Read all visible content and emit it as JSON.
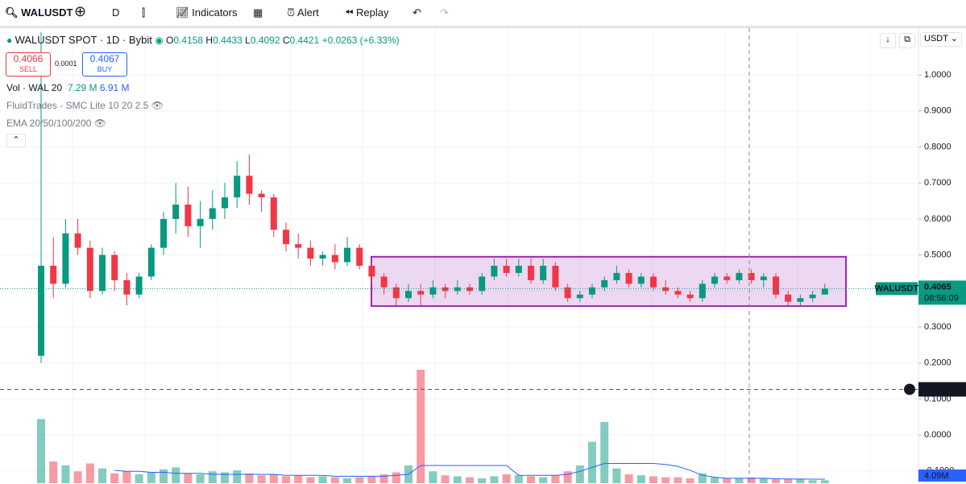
{
  "toolbar": {
    "symbol": "WALUSDT",
    "interval": "D",
    "indicators": "Indicators",
    "alert": "Alert",
    "replay": "Replay"
  },
  "legend": {
    "title": "WALUSDT SPOT · 1D · Bybit",
    "o_label": "O",
    "o": 0.4158,
    "h_label": "H",
    "h": 0.4433,
    "l_label": "L",
    "l": 0.4092,
    "c_label": "C",
    "c": 0.4421,
    "change": "+0.0263 (+6.33%)",
    "sell_price": 0.4066,
    "sell": "SELL",
    "spread": 0.0001,
    "buy_price": 0.4067,
    "buy": "BUY",
    "vol_title": "Vol · WAL 20",
    "vol_value": "7.29 M",
    "vol_ma": "6.91 M",
    "indicator_1": "FluidTrades - SMC Lite 10 20 2.5",
    "indicator_2": "EMA 20/50/100/200"
  },
  "currency": "USDT",
  "chart_data": {
    "type": "candlestick",
    "open": [
      0.22,
      0.47,
      0.42,
      0.56,
      0.52,
      0.4,
      0.5,
      0.43,
      0.39,
      0.44,
      0.52,
      0.6,
      0.64,
      0.58,
      0.6,
      0.63,
      0.66,
      0.72,
      0.67,
      0.66,
      0.57,
      0.53,
      0.52,
      0.49,
      0.5,
      0.48,
      0.52,
      0.47,
      0.44,
      0.41,
      0.38,
      0.4,
      0.39,
      0.41,
      0.4,
      0.41,
      0.4,
      0.44,
      0.47,
      0.45,
      0.47,
      0.43,
      0.47,
      0.41,
      0.38,
      0.39,
      0.41,
      0.43,
      0.45,
      0.42,
      0.44,
      0.41,
      0.4,
      0.39,
      0.38,
      0.42,
      0.44,
      0.43,
      0.45,
      0.43,
      0.44,
      0.39,
      0.37,
      0.38,
      0.39
    ],
    "high": [
      1.12,
      0.55,
      0.6,
      0.6,
      0.54,
      0.52,
      0.51,
      0.45,
      0.45,
      0.53,
      0.62,
      0.7,
      0.69,
      0.65,
      0.68,
      0.7,
      0.76,
      0.78,
      0.68,
      0.67,
      0.59,
      0.56,
      0.54,
      0.51,
      0.53,
      0.55,
      0.53,
      0.48,
      0.45,
      0.42,
      0.42,
      0.42,
      0.43,
      0.42,
      0.43,
      0.42,
      0.45,
      0.49,
      0.49,
      0.49,
      0.49,
      0.49,
      0.48,
      0.42,
      0.4,
      0.42,
      0.44,
      0.47,
      0.46,
      0.45,
      0.45,
      0.43,
      0.41,
      0.4,
      0.43,
      0.45,
      0.45,
      0.46,
      0.46,
      0.45,
      0.45,
      0.4,
      0.39,
      0.4,
      0.42
    ],
    "low": [
      0.2,
      0.38,
      0.41,
      0.5,
      0.38,
      0.39,
      0.4,
      0.36,
      0.38,
      0.43,
      0.5,
      0.56,
      0.55,
      0.52,
      0.57,
      0.6,
      0.63,
      0.64,
      0.62,
      0.55,
      0.51,
      0.49,
      0.47,
      0.47,
      0.46,
      0.47,
      0.46,
      0.42,
      0.39,
      0.36,
      0.37,
      0.36,
      0.38,
      0.38,
      0.39,
      0.39,
      0.39,
      0.43,
      0.44,
      0.44,
      0.42,
      0.42,
      0.4,
      0.37,
      0.37,
      0.38,
      0.4,
      0.42,
      0.41,
      0.41,
      0.4,
      0.39,
      0.38,
      0.37,
      0.37,
      0.41,
      0.42,
      0.42,
      0.42,
      0.41,
      0.38,
      0.36,
      0.36,
      0.37,
      0.39
    ],
    "close": [
      0.47,
      0.42,
      0.56,
      0.52,
      0.4,
      0.5,
      0.43,
      0.39,
      0.44,
      0.52,
      0.6,
      0.64,
      0.58,
      0.6,
      0.63,
      0.66,
      0.72,
      0.67,
      0.66,
      0.57,
      0.53,
      0.52,
      0.49,
      0.5,
      0.48,
      0.52,
      0.47,
      0.44,
      0.41,
      0.38,
      0.4,
      0.39,
      0.41,
      0.4,
      0.41,
      0.4,
      0.44,
      0.47,
      0.45,
      0.47,
      0.43,
      0.47,
      0.41,
      0.38,
      0.39,
      0.41,
      0.43,
      0.45,
      0.42,
      0.44,
      0.41,
      0.4,
      0.39,
      0.38,
      0.42,
      0.44,
      0.43,
      0.45,
      0.43,
      0.44,
      0.39,
      0.37,
      0.38,
      0.39,
      0.4065
    ],
    "volume": [
      65,
      22,
      18,
      12,
      20,
      15,
      10,
      12,
      9,
      11,
      14,
      16,
      10,
      9,
      12,
      11,
      13,
      10,
      8,
      9,
      7,
      8,
      6,
      7,
      6,
      5,
      6,
      7,
      9,
      11,
      18,
      115,
      12,
      8,
      7,
      6,
      5,
      7,
      9,
      8,
      7,
      6,
      8,
      12,
      18,
      42,
      62,
      15,
      9,
      8,
      7,
      6,
      6,
      5,
      10,
      6,
      5,
      5,
      6,
      5,
      4,
      4,
      4,
      3,
      3
    ],
    "volume_ma": [
      null,
      null,
      null,
      null,
      null,
      null,
      13,
      12,
      12,
      11,
      11,
      10,
      10,
      10,
      9,
      9,
      9,
      9,
      9,
      9,
      8,
      8,
      8,
      8,
      7,
      7,
      7,
      7,
      7,
      8,
      9,
      18,
      18,
      18,
      18,
      18,
      18,
      18,
      18,
      8,
      8,
      8,
      8,
      9,
      12,
      16,
      20,
      20,
      20,
      20,
      20,
      19,
      17,
      13,
      8,
      6,
      5,
      5,
      5,
      5,
      4.5,
      4.3,
      4.2,
      4.1,
      4.09
    ],
    "volume_ma_label": "4.09M",
    "ylim": [
      -0.134,
      1.13
    ],
    "vlim": [
      0,
      120
    ],
    "yticks": [
      {
        "value": 1.0,
        "label": "1.0000"
      },
      {
        "value": 0.9,
        "label": "0.9000"
      },
      {
        "value": 0.8,
        "label": "0.8000"
      },
      {
        "value": 0.7,
        "label": "0.7000"
      },
      {
        "value": 0.6,
        "label": "0.6000"
      },
      {
        "value": 0.5,
        "label": "0.5000"
      },
      {
        "value": 0.4,
        "label": "0.4000"
      },
      {
        "value": 0.3,
        "label": "0.3000"
      },
      {
        "value": 0.2,
        "label": "0.2000"
      },
      {
        "value": 0.1,
        "label": "0.1000"
      },
      {
        "value": 0.0,
        "label": "0.0000"
      },
      {
        "value": -0.1,
        "label": "-0.1000"
      }
    ],
    "range_box": {
      "high": 0.495,
      "low": 0.358
    },
    "last_price": {
      "symbol": "WALUSDT",
      "value": 0.4065,
      "countdown": "08:56:09"
    },
    "crosshair": {
      "value": 0.1267
    },
    "up_color": "#089981",
    "down_color": "#f23645",
    "grid": true
  }
}
